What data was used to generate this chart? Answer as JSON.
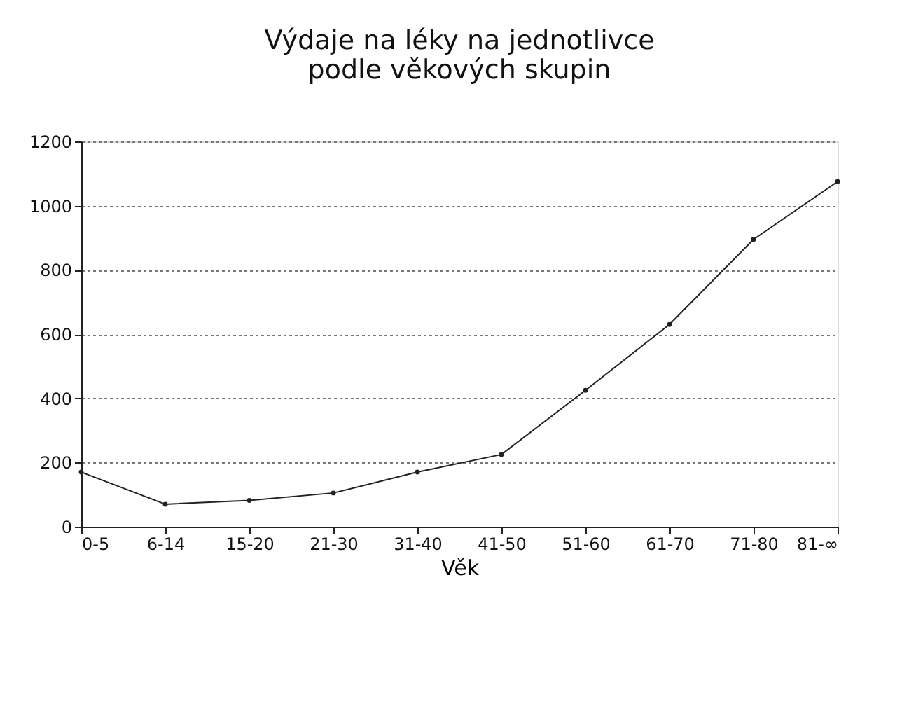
{
  "chart_data": {
    "type": "line",
    "title": "Výdaje na léky na jednotlivce podle věkových skupin",
    "xlabel": "Věk",
    "categories": [
      "0-5",
      "6-14",
      "15-20",
      "21-30",
      "31-40",
      "41-50",
      "51-60",
      "61-70",
      "71-80",
      "81-∞"
    ],
    "series": [
      {
        "color": "#222222",
        "values": [
          170,
          70,
          82,
          105,
          170,
          225,
          425,
          630,
          895,
          1075
        ]
      }
    ],
    "ylim": [
      0,
      1200
    ],
    "yticks": [
      0,
      200,
      400,
      600,
      800,
      1000,
      1200
    ],
    "grid": "y",
    "marker": "circle",
    "line_style": "solid",
    "legend": false
  }
}
